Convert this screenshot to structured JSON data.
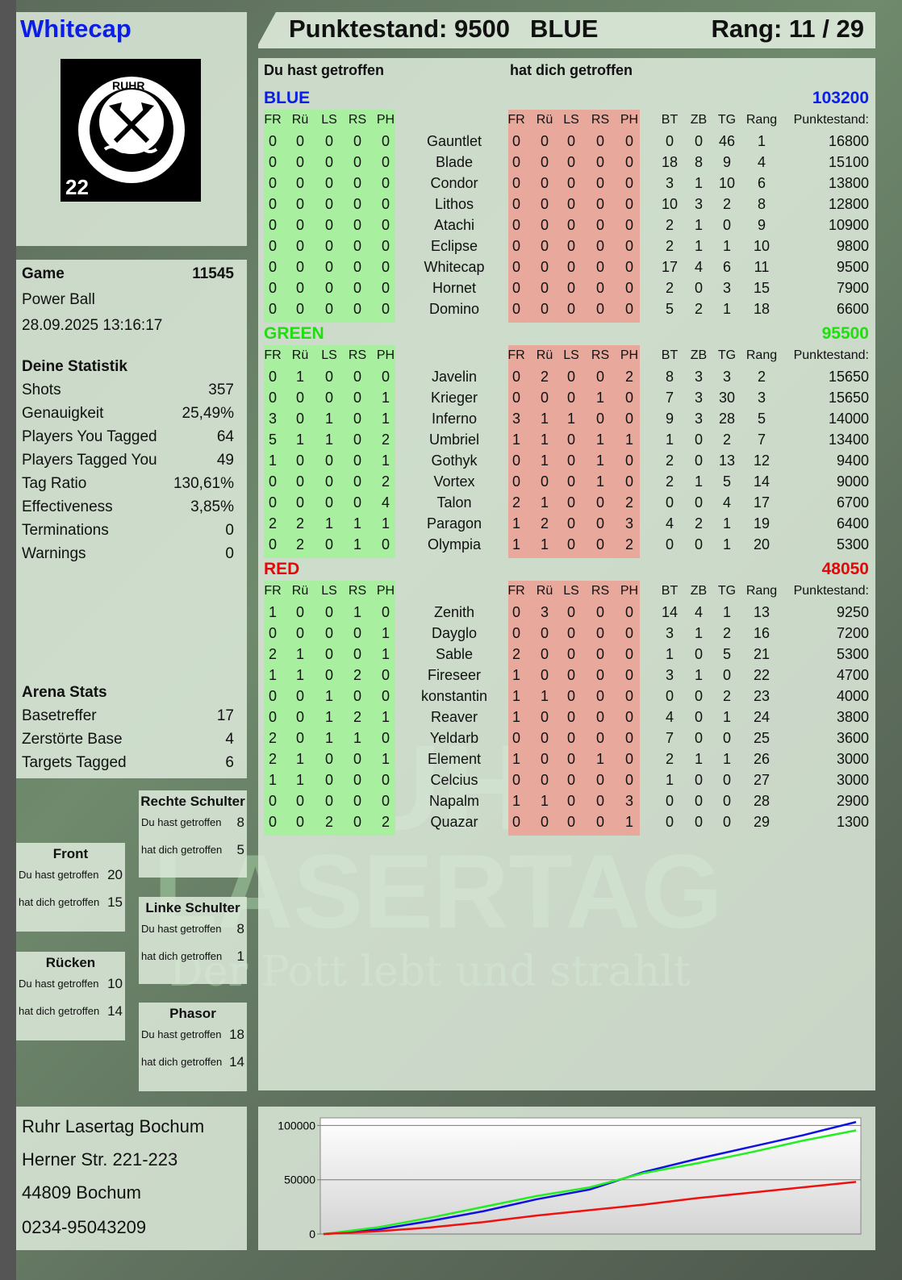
{
  "player": {
    "name": "Whitecap",
    "logo_text": "RUHR LASERTAG 22"
  },
  "header": {
    "score": "Punktestand: 9500",
    "team": "BLUE",
    "rank": "Rang: 11 / 29"
  },
  "main": {
    "you_hit": "Du hast getroffen",
    "hit_you": "hat dich getroffen",
    "columns_left": [
      "FR",
      "Rü",
      "LS",
      "RS",
      "PH"
    ],
    "columns_right": [
      "FR",
      "Rü",
      "LS",
      "RS",
      "PH"
    ],
    "columns_stats": [
      "BT",
      "ZB",
      "TG",
      "Rang",
      "Punktestand:"
    ],
    "teams": [
      {
        "name": "BLUE",
        "total": "103200",
        "color": "#0a1ee6",
        "players": [
          [
            "Gauntlet",
            [
              0,
              0,
              0,
              0,
              0
            ],
            [
              0,
              0,
              0,
              0,
              0
            ],
            [
              0,
              0,
              46,
              1,
              16800
            ]
          ],
          [
            "Blade",
            [
              0,
              0,
              0,
              0,
              0
            ],
            [
              0,
              0,
              0,
              0,
              0
            ],
            [
              18,
              8,
              9,
              4,
              15100
            ]
          ],
          [
            "Condor",
            [
              0,
              0,
              0,
              0,
              0
            ],
            [
              0,
              0,
              0,
              0,
              0
            ],
            [
              3,
              1,
              10,
              6,
              13800
            ]
          ],
          [
            "Lithos",
            [
              0,
              0,
              0,
              0,
              0
            ],
            [
              0,
              0,
              0,
              0,
              0
            ],
            [
              10,
              3,
              2,
              8,
              12800
            ]
          ],
          [
            "Atachi",
            [
              0,
              0,
              0,
              0,
              0
            ],
            [
              0,
              0,
              0,
              0,
              0
            ],
            [
              2,
              1,
              0,
              9,
              10900
            ]
          ],
          [
            "Eclipse",
            [
              0,
              0,
              0,
              0,
              0
            ],
            [
              0,
              0,
              0,
              0,
              0
            ],
            [
              2,
              1,
              1,
              10,
              9800
            ]
          ],
          [
            "Whitecap",
            [
              0,
              0,
              0,
              0,
              0
            ],
            [
              0,
              0,
              0,
              0,
              0
            ],
            [
              17,
              4,
              6,
              11,
              9500
            ]
          ],
          [
            "Hornet",
            [
              0,
              0,
              0,
              0,
              0
            ],
            [
              0,
              0,
              0,
              0,
              0
            ],
            [
              2,
              0,
              3,
              15,
              7900
            ]
          ],
          [
            "Domino",
            [
              0,
              0,
              0,
              0,
              0
            ],
            [
              0,
              0,
              0,
              0,
              0
            ],
            [
              5,
              2,
              1,
              18,
              6600
            ]
          ]
        ]
      },
      {
        "name": "GREEN",
        "total": "95500",
        "color": "#22dd11",
        "players": [
          [
            "Javelin",
            [
              0,
              1,
              0,
              0,
              0
            ],
            [
              0,
              2,
              0,
              0,
              2
            ],
            [
              8,
              3,
              3,
              2,
              15650
            ]
          ],
          [
            "Krieger",
            [
              0,
              0,
              0,
              0,
              1
            ],
            [
              0,
              0,
              0,
              1,
              0
            ],
            [
              7,
              3,
              30,
              3,
              15650
            ]
          ],
          [
            "Inferno",
            [
              3,
              0,
              1,
              0,
              1
            ],
            [
              3,
              1,
              1,
              0,
              0
            ],
            [
              9,
              3,
              28,
              5,
              14000
            ]
          ],
          [
            "Umbriel",
            [
              5,
              1,
              1,
              0,
              2
            ],
            [
              1,
              1,
              0,
              1,
              1
            ],
            [
              1,
              0,
              2,
              7,
              13400
            ]
          ],
          [
            "Gothyk",
            [
              1,
              0,
              0,
              0,
              1
            ],
            [
              0,
              1,
              0,
              1,
              0
            ],
            [
              2,
              0,
              13,
              12,
              9400
            ]
          ],
          [
            "Vortex",
            [
              0,
              0,
              0,
              0,
              2
            ],
            [
              0,
              0,
              0,
              1,
              0
            ],
            [
              2,
              1,
              5,
              14,
              9000
            ]
          ],
          [
            "Talon",
            [
              0,
              0,
              0,
              0,
              4
            ],
            [
              2,
              1,
              0,
              0,
              2
            ],
            [
              0,
              0,
              4,
              17,
              6700
            ]
          ],
          [
            "Paragon",
            [
              2,
              2,
              1,
              1,
              1
            ],
            [
              1,
              2,
              0,
              0,
              3
            ],
            [
              4,
              2,
              1,
              19,
              6400
            ]
          ],
          [
            "Olympia",
            [
              0,
              2,
              0,
              1,
              0
            ],
            [
              1,
              1,
              0,
              0,
              2
            ],
            [
              0,
              0,
              1,
              20,
              5300
            ]
          ]
        ]
      },
      {
        "name": "RED",
        "total": "48050",
        "color": "#e00a0a",
        "players": [
          [
            "Zenith",
            [
              1,
              0,
              0,
              1,
              0
            ],
            [
              0,
              3,
              0,
              0,
              0
            ],
            [
              14,
              4,
              1,
              13,
              9250
            ]
          ],
          [
            "Dayglo",
            [
              0,
              0,
              0,
              0,
              1
            ],
            [
              0,
              0,
              0,
              0,
              0
            ],
            [
              3,
              1,
              2,
              16,
              7200
            ]
          ],
          [
            "Sable",
            [
              2,
              1,
              0,
              0,
              1
            ],
            [
              2,
              0,
              0,
              0,
              0
            ],
            [
              1,
              0,
              5,
              21,
              5300
            ]
          ],
          [
            "Fireseer",
            [
              1,
              1,
              0,
              2,
              0
            ],
            [
              1,
              0,
              0,
              0,
              0
            ],
            [
              3,
              1,
              0,
              22,
              4700
            ]
          ],
          [
            "konstantin",
            [
              0,
              0,
              1,
              0,
              0
            ],
            [
              1,
              1,
              0,
              0,
              0
            ],
            [
              0,
              0,
              2,
              23,
              4000
            ]
          ],
          [
            "Reaver",
            [
              0,
              0,
              1,
              2,
              1
            ],
            [
              1,
              0,
              0,
              0,
              0
            ],
            [
              4,
              0,
              1,
              24,
              3800
            ]
          ],
          [
            "Yeldarb",
            [
              2,
              0,
              1,
              1,
              0
            ],
            [
              0,
              0,
              0,
              0,
              0
            ],
            [
              7,
              0,
              0,
              25,
              3600
            ]
          ],
          [
            "Element",
            [
              2,
              1,
              0,
              0,
              1
            ],
            [
              1,
              0,
              0,
              1,
              0
            ],
            [
              2,
              1,
              1,
              26,
              3000
            ]
          ],
          [
            "Celcius",
            [
              1,
              1,
              0,
              0,
              0
            ],
            [
              0,
              0,
              0,
              0,
              0
            ],
            [
              1,
              0,
              0,
              27,
              3000
            ]
          ],
          [
            "Napalm",
            [
              0,
              0,
              0,
              0,
              0
            ],
            [
              1,
              1,
              0,
              0,
              3
            ],
            [
              0,
              0,
              0,
              28,
              2900
            ]
          ],
          [
            "Quazar",
            [
              0,
              0,
              2,
              0,
              2
            ],
            [
              0,
              0,
              0,
              0,
              1
            ],
            [
              0,
              0,
              0,
              29,
              1300
            ]
          ]
        ]
      }
    ]
  },
  "game": {
    "label": "Game",
    "number": "11545",
    "mode": "Power Ball",
    "datetime": "28.09.2025 13:16:17"
  },
  "stats": {
    "title": "Deine Statistik",
    "rows": [
      {
        "label": "Shots",
        "value": "357"
      },
      {
        "label": "Genauigkeit",
        "value": "25,49%"
      },
      {
        "label": "Players You Tagged",
        "value": "64"
      },
      {
        "label": "Players Tagged You",
        "value": "49"
      },
      {
        "label": "Tag Ratio",
        "value": "130,61%"
      },
      {
        "label": "Effectiveness",
        "value": "3,85%"
      },
      {
        "label": "Terminations",
        "value": "0"
      },
      {
        "label": "Warnings",
        "value": "0"
      }
    ]
  },
  "arena": {
    "title": "Arena Stats",
    "rows": [
      {
        "label": "Basetreffer",
        "value": "17"
      },
      {
        "label": "Zerstörte Base",
        "value": "4"
      },
      {
        "label": "Targets Tagged",
        "value": "6"
      }
    ]
  },
  "hitzones": [
    {
      "name": "Rechte Schulter",
      "you_hit_label": "Du hast getroffen",
      "you_hit": "8",
      "hit_you_label": "hat dich getroffen",
      "hit_you": "5"
    },
    {
      "name": "Front",
      "you_hit_label": "Du hast getroffen",
      "you_hit": "20",
      "hit_you_label": "hat dich getroffen",
      "hit_you": "15"
    },
    {
      "name": "Linke Schulter",
      "you_hit_label": "Du hast getroffen",
      "you_hit": "8",
      "hit_you_label": "hat dich getroffen",
      "hit_you": "1"
    },
    {
      "name": "Rücken",
      "you_hit_label": "Du hast getroffen",
      "you_hit": "10",
      "hit_you_label": "hat dich getroffen",
      "hit_you": "14"
    },
    {
      "name": "Phasor",
      "you_hit_label": "Du hast getroffen",
      "you_hit": "18",
      "hit_you_label": "hat dich getroffen",
      "hit_you": "14"
    }
  ],
  "address": {
    "lines": [
      "Ruhr Lasertag Bochum",
      "Herner Str. 221-223",
      "44809 Bochum",
      "0234-95043209"
    ]
  },
  "watermark": {
    "line1": "RUHR",
    "line2": "LASERTAG",
    "line3": "Der Pott lebt und strahlt"
  },
  "colors": {
    "you_hit_band": "#a8f0a0",
    "hit_you_band": "#e8a89c"
  },
  "chart_data": {
    "type": "line",
    "title": "",
    "xlabel": "",
    "ylabel": "",
    "ylim": [
      0,
      107000
    ],
    "yticks": [
      0,
      50000,
      100000
    ],
    "ytick_labels": [
      "0",
      "50000",
      "100000"
    ],
    "grid": true,
    "x": [
      0,
      1,
      2,
      3,
      4,
      5,
      6,
      7,
      8,
      9,
      10
    ],
    "series": [
      {
        "color": "#1010e0",
        "values": [
          0,
          4000,
          12000,
          21000,
          32000,
          41000,
          57000,
          69000,
          80000,
          91000,
          103200
        ]
      },
      {
        "color": "#22ee22",
        "values": [
          0,
          6000,
          15000,
          25000,
          35000,
          43000,
          56000,
          65000,
          75000,
          86000,
          95500
        ]
      },
      {
        "color": "#ee1111",
        "values": [
          0,
          2500,
          6000,
          11000,
          17000,
          22000,
          27000,
          33000,
          38000,
          43000,
          48050
        ]
      }
    ]
  }
}
